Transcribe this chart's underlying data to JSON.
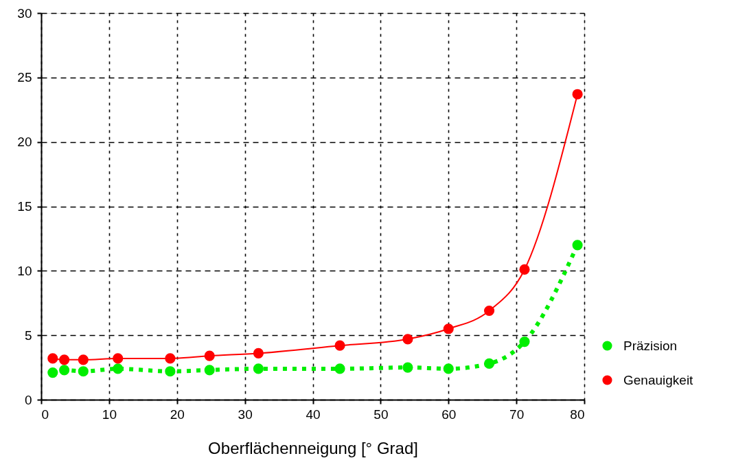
{
  "chart_data": {
    "type": "line",
    "xlabel": "Oberflächenneigung [° Grad]",
    "x": [
      1.7,
      3.4,
      6.2,
      11.3,
      19,
      24.8,
      32,
      44,
      54,
      60,
      66,
      71.2,
      79
    ],
    "series": [
      {
        "name": "Präzision",
        "color": "#00ee00",
        "line_style": "dotted",
        "values": [
          2.1,
          2.3,
          2.2,
          2.4,
          2.2,
          2.3,
          2.4,
          2.4,
          2.5,
          2.4,
          2.8,
          4.5,
          12.0
        ]
      },
      {
        "name": "Genauigkeit",
        "color": "#ff0000",
        "line_style": "solid",
        "values": [
          3.2,
          3.1,
          3.1,
          3.2,
          3.2,
          3.4,
          3.6,
          4.2,
          4.7,
          5.5,
          6.9,
          10.1,
          23.7
        ]
      }
    ],
    "xlim": [
      0,
      80
    ],
    "ylim": [
      0,
      30
    ],
    "xticks": [
      0,
      10,
      20,
      30,
      40,
      50,
      60,
      70,
      80
    ],
    "yticks": [
      0,
      5,
      10,
      15,
      20,
      25,
      30
    ],
    "grid": true,
    "legend": "bottom right",
    "marker": "circle"
  }
}
